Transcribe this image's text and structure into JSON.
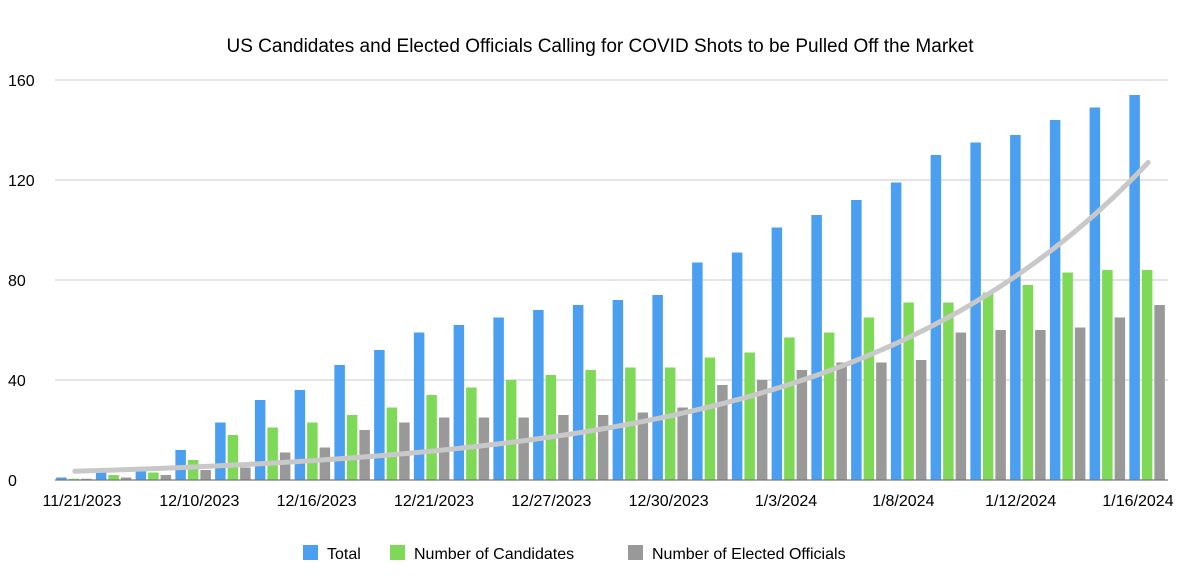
{
  "chart_data": {
    "type": "bar",
    "title": "US Candidates and Elected Officials Calling for COVID Shots to be Pulled Off the Market",
    "xlabel": "",
    "ylabel": "",
    "ylim": [
      0,
      160
    ],
    "yticks": [
      0,
      40,
      80,
      120,
      160
    ],
    "grid": true,
    "legend_position": "bottom",
    "x_tick_labels": [
      "11/21/2023",
      "12/10/2023",
      "12/16/2023",
      "12/21/2023",
      "12/27/2023",
      "12/30/2023",
      "1/3/2024",
      "1/8/2024",
      "1/12/2024",
      "1/16/2024"
    ],
    "series": [
      {
        "name": "Total",
        "color": "#4a9ff0",
        "values": [
          1,
          3,
          5,
          12,
          23,
          32,
          36,
          46,
          52,
          59,
          62,
          65,
          68,
          70,
          72,
          74,
          87,
          91,
          101,
          106,
          112,
          119,
          130,
          135,
          138,
          144,
          149,
          154
        ]
      },
      {
        "name": "Number of Candidates",
        "color": "#7ed957",
        "values": [
          0.5,
          2,
          3,
          8,
          18,
          21,
          23,
          26,
          29,
          34,
          37,
          40,
          42,
          44,
          45,
          45,
          49,
          51,
          57,
          59,
          65,
          71,
          71,
          75,
          78,
          83,
          84,
          84
        ]
      },
      {
        "name": "Number of Elected Officials",
        "color": "#999999",
        "values": [
          0.5,
          1,
          2,
          4,
          5,
          11,
          13,
          20,
          23,
          25,
          25,
          25,
          26,
          26,
          27,
          29,
          38,
          40,
          44,
          47,
          47,
          48,
          59,
          60,
          60,
          61,
          65,
          70
        ]
      }
    ],
    "trendline": {
      "type": "exponential",
      "color": "#c8c8c8",
      "start_value": 3.5,
      "end_value": 127
    }
  }
}
